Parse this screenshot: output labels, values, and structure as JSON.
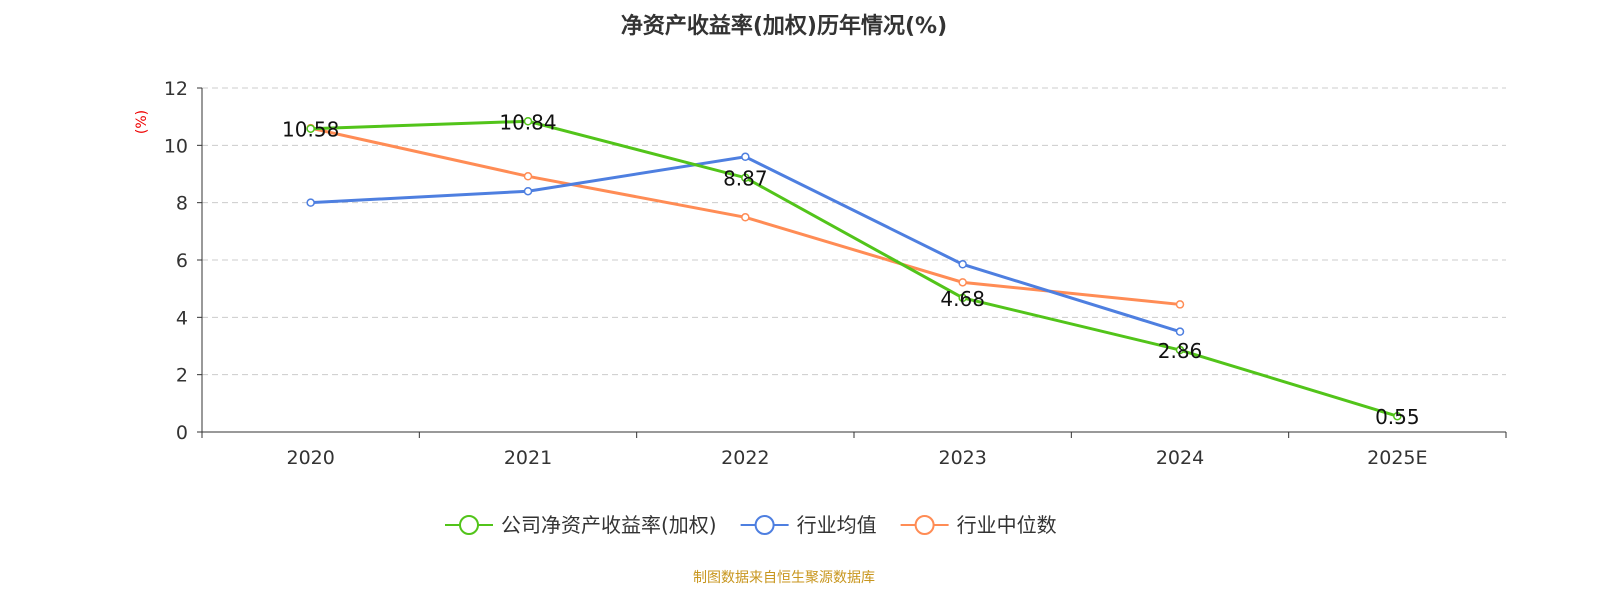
{
  "chart_data": {
    "type": "line",
    "title": "净资产收益率(加权)历年情况(%)",
    "ylabel": "(%)",
    "categories": [
      "2020",
      "2021",
      "2022",
      "2023",
      "2024",
      "2025E"
    ],
    "ylim": [
      0,
      12
    ],
    "yticks": [
      "0",
      "2",
      "4",
      "6",
      "8",
      "10",
      "12"
    ],
    "grid": true,
    "legend_position": "bottom",
    "series": [
      {
        "name": "公司净资产收益率(加权)",
        "color": "#52c41a",
        "values": [
          10.58,
          10.84,
          8.87,
          4.68,
          2.86,
          0.55
        ],
        "labels": [
          "10.58",
          "10.84",
          "8.87",
          "4.68",
          "2.86",
          "0.55"
        ]
      },
      {
        "name": "行业均值",
        "color": "#4e7fe0",
        "values": [
          8.0,
          8.4,
          9.6,
          5.85,
          3.5,
          null
        ]
      },
      {
        "name": "行业中位数",
        "color": "#ff8c55",
        "values": [
          10.6,
          8.92,
          7.49,
          5.22,
          4.45,
          null
        ]
      }
    ]
  },
  "source": "制图数据来自恒生聚源数据库"
}
